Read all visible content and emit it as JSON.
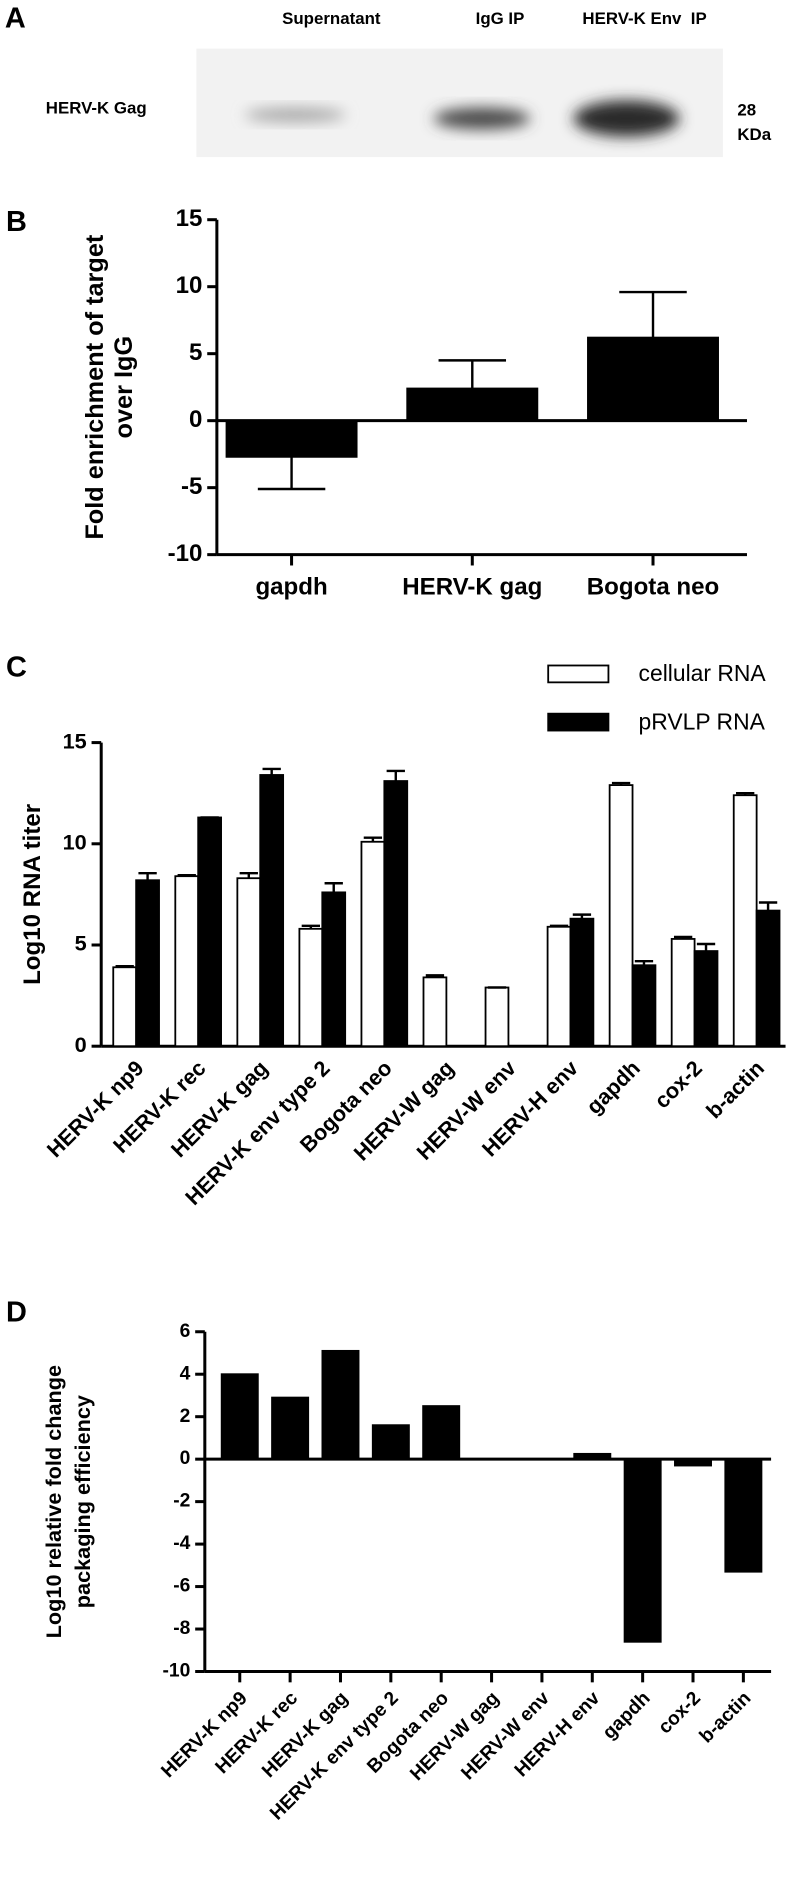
{
  "blot": {
    "panel_label": "A",
    "lanes": [
      "Supernatant",
      "IgG IP",
      "HERV-K Env  IP"
    ],
    "band_label": "HERV-K Gag",
    "size_value": "28",
    "size_unit": "KDa"
  },
  "chart_data": [
    {
      "type": "bar",
      "panel_label": "B",
      "y_label": [
        "Fold enrichment of target",
        "over IgG"
      ],
      "categories": [
        "gapdh",
        "HERV-K gag",
        "Bogota neo"
      ],
      "series": [
        {
          "color": "#000000",
          "values": [
            -2.7,
            2.4,
            6.2
          ],
          "errors": [
            2.4,
            2.1,
            3.4
          ]
        }
      ],
      "ylim": [
        -10,
        15
      ],
      "yticks": [
        -10,
        -5,
        0,
        5,
        10,
        15
      ]
    },
    {
      "type": "bar",
      "panel_label": "C",
      "y_label": [
        "Log10 RNA titer"
      ],
      "categories": [
        "HERV-K np9",
        "HERV-K rec",
        "HERV-K gag",
        "HERV-K env type 2",
        "Bogota neo",
        "HERV-W gag",
        "HERV-W env",
        "HERV-H env",
        "gapdh",
        "cox-2",
        "b-actin"
      ],
      "series": [
        {
          "name": "cellular RNA",
          "color": "#ffffff",
          "values": [
            3.9,
            8.4,
            8.3,
            5.8,
            10.1,
            3.4,
            2.9,
            5.9,
            12.9,
            5.3,
            12.4
          ],
          "errors": [
            0.05,
            0.05,
            0.25,
            0.15,
            0.2,
            0.1,
            0,
            0.05,
            0.1,
            0.1,
            0.1
          ]
        },
        {
          "name": "pRVLP RNA",
          "color": "#000000",
          "values": [
            8.2,
            11.3,
            13.4,
            7.6,
            13.1,
            null,
            null,
            6.3,
            4.0,
            4.7,
            6.7
          ],
          "errors": [
            0.35,
            0,
            0.3,
            0.45,
            0.5,
            null,
            null,
            0.2,
            0.2,
            0.35,
            0.4
          ]
        }
      ],
      "ylim": [
        0,
        15
      ],
      "yticks": [
        0,
        5,
        10,
        15
      ],
      "legend": "top-right"
    },
    {
      "type": "bar",
      "panel_label": "D",
      "y_label": [
        "Log10 relative fold change",
        "packaging efficiency"
      ],
      "categories": [
        "HERV-K np9",
        "HERV-K rec",
        "HERV-K gag",
        "HERV-K env type 2",
        "Bogota neo",
        "HERV-W gag",
        "HERV-W env",
        "HERV-H env",
        "gapdh",
        "cox-2",
        "b-actin"
      ],
      "series": [
        {
          "color": "#000000",
          "values": [
            4.0,
            2.9,
            5.1,
            1.6,
            2.5,
            0,
            0,
            0.25,
            -8.6,
            -0.3,
            -5.3
          ]
        }
      ],
      "ylim": [
        -10,
        6
      ],
      "yticks": [
        -10,
        -8,
        -6,
        -4,
        -2,
        0,
        2,
        4,
        6
      ]
    }
  ]
}
